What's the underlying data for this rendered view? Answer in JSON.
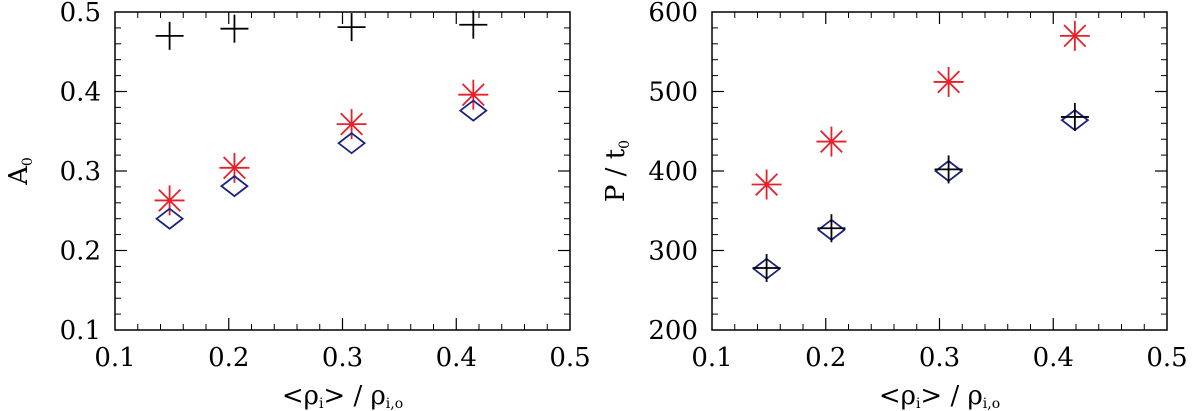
{
  "chart_data": [
    {
      "type": "scatter",
      "panel": "left",
      "xlabel": {
        "prefix": "<ρ",
        "sub1": "i",
        "mid": "> / ρ",
        "sub2": "i,o"
      },
      "ylabel": {
        "main": "A",
        "sub": "0"
      },
      "xlim": [
        0.1,
        0.5
      ],
      "ylim": [
        0.1,
        0.5
      ],
      "xticks": [
        "0.1",
        "0.2",
        "0.3",
        "0.4",
        "0.5"
      ],
      "yticks": [
        "0.1",
        "0.2",
        "0.3",
        "0.4",
        "0.5"
      ],
      "x": [
        0.148,
        0.205,
        0.308,
        0.415
      ],
      "series": [
        {
          "marker": "plus",
          "color": "#000000",
          "values": [
            0.47,
            0.479,
            0.481,
            0.484
          ]
        },
        {
          "marker": "asterisk",
          "color": "#e8202a",
          "values": [
            0.263,
            0.304,
            0.359,
            0.396
          ]
        },
        {
          "marker": "diamond",
          "color": "#1a237e",
          "values": [
            0.24,
            0.281,
            0.335,
            0.376
          ]
        }
      ]
    },
    {
      "type": "scatter",
      "panel": "right",
      "xlabel": {
        "prefix": "<ρ",
        "sub1": "i",
        "mid": "> / ρ",
        "sub2": "i,o"
      },
      "ylabel": {
        "main": "P / t",
        "sub": "0"
      },
      "xlim": [
        0.1,
        0.5
      ],
      "ylim": [
        200,
        600
      ],
      "xticks": [
        "0.1",
        "0.2",
        "0.3",
        "0.4",
        "0.5"
      ],
      "yticks": [
        "200",
        "300",
        "400",
        "500",
        "600"
      ],
      "x": [
        0.148,
        0.205,
        0.308,
        0.419
      ],
      "series": [
        {
          "marker": "asterisk",
          "color": "#e8202a",
          "values": [
            383,
            437,
            512,
            570
          ]
        },
        {
          "marker": "diamond",
          "color": "#1a237e",
          "values": [
            277,
            326,
            400,
            464
          ]
        },
        {
          "marker": "plus",
          "color": "#000000",
          "values": [
            278,
            328,
            402,
            468
          ]
        }
      ]
    }
  ]
}
